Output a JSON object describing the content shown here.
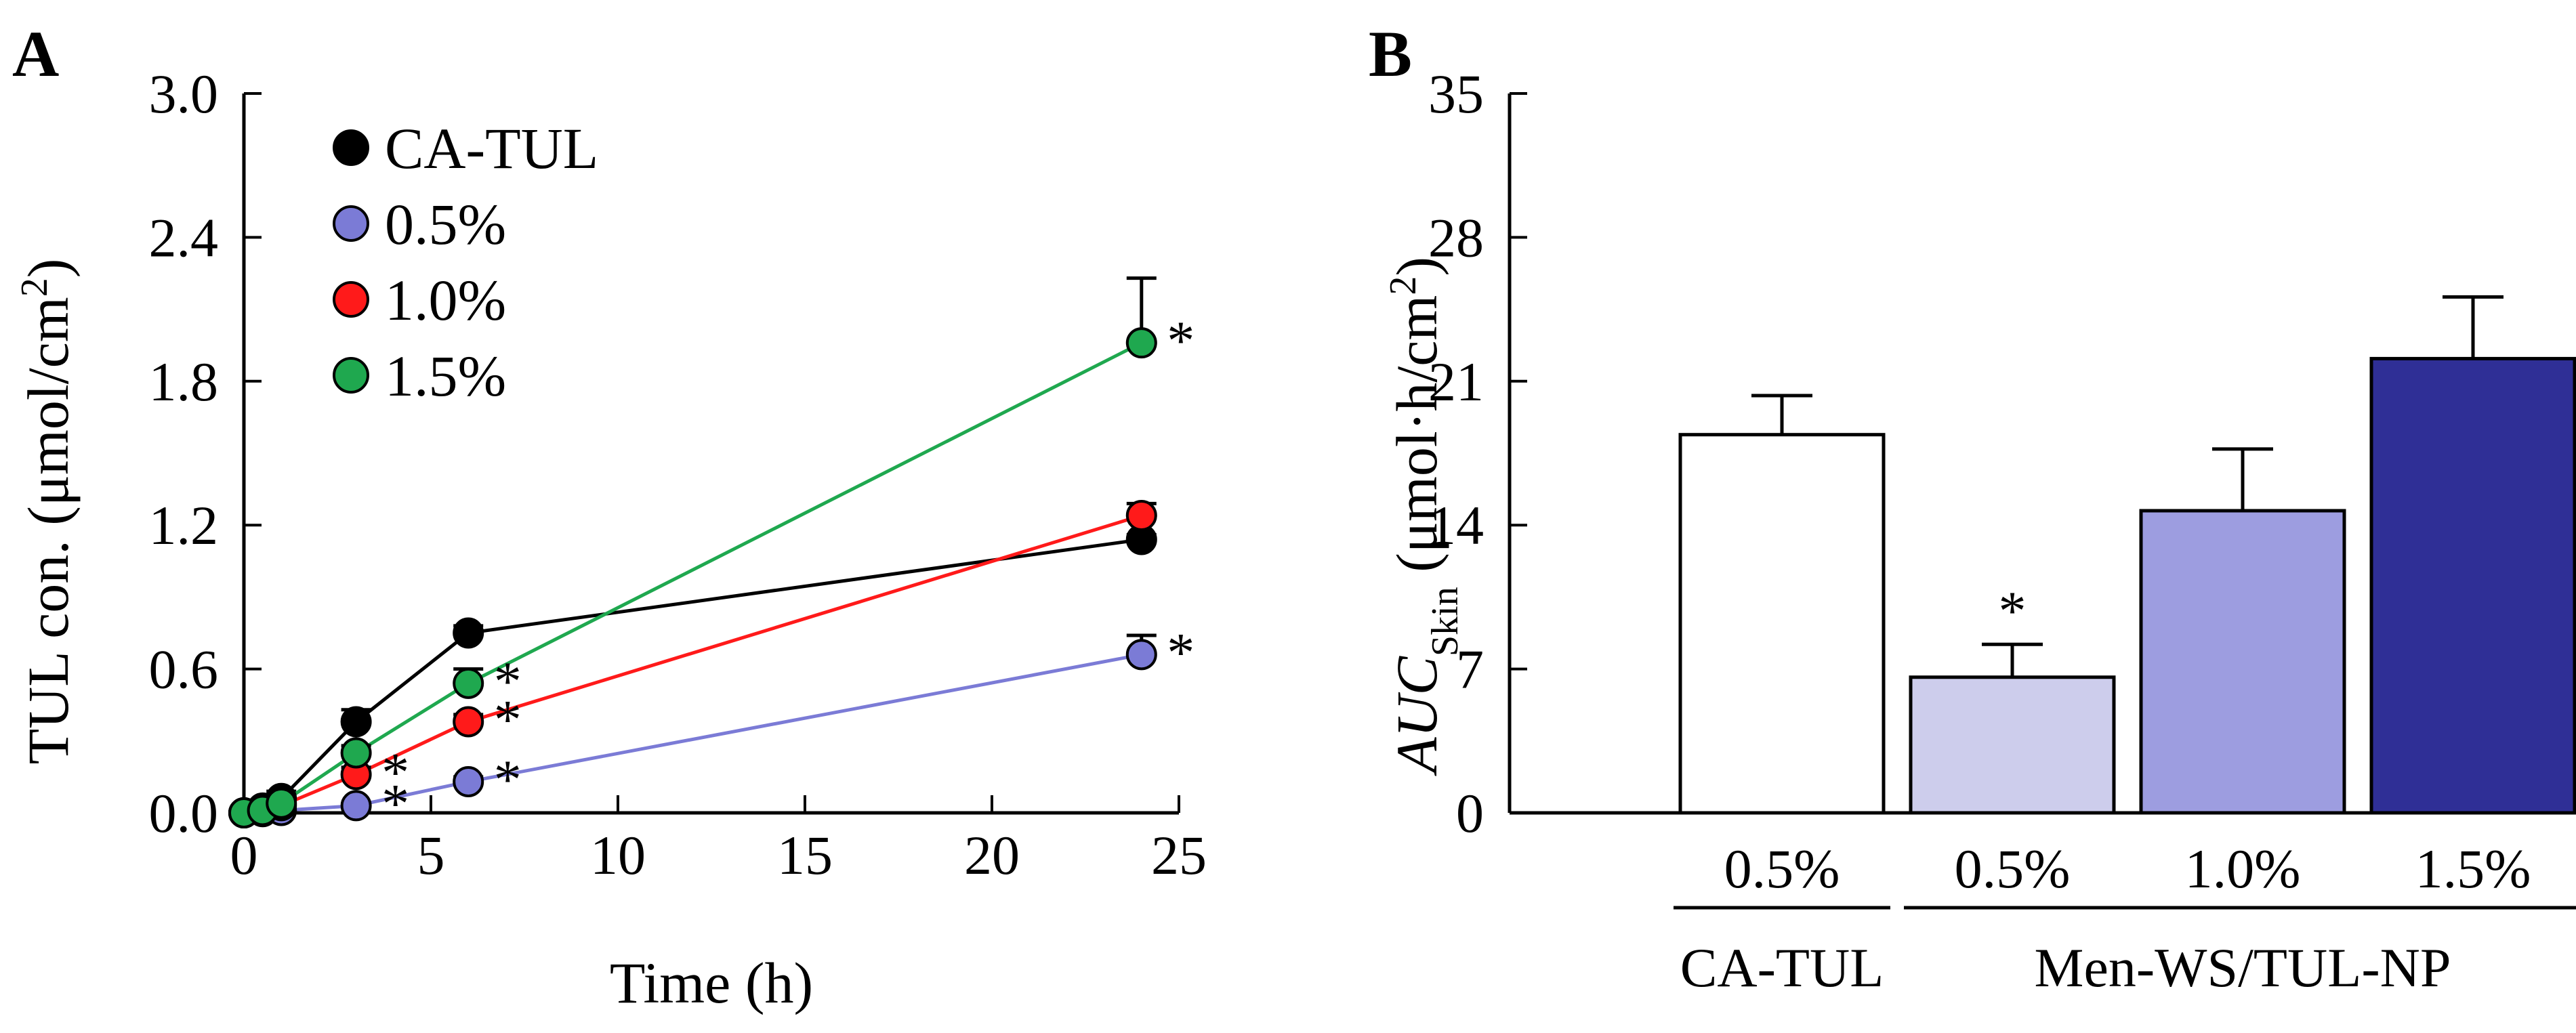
{
  "chart_data": [
    {
      "panel": "A",
      "type": "line",
      "xlabel": "Time (h)",
      "ylabel_main": "TUL con. (μmol/cm",
      "ylabel_sup": "2",
      "ylabel_close": ")",
      "xlim": [
        0,
        25
      ],
      "ylim": [
        0,
        3.0
      ],
      "xticks": [
        0,
        5,
        10,
        15,
        20,
        25
      ],
      "yticks": [
        "0.0",
        "0.6",
        "1.2",
        "1.8",
        "2.4",
        "3.0"
      ],
      "series": [
        {
          "name": "CA-TUL",
          "color": "#000000",
          "x": [
            0,
            0.5,
            1,
            3,
            6,
            24
          ],
          "y": [
            0,
            0.02,
            0.06,
            0.38,
            0.75,
            1.14
          ],
          "err": [
            0.01,
            0.015,
            0.03,
            0.05,
            0.03,
            0.02
          ],
          "stars": [
            false,
            false,
            false,
            false,
            false,
            false
          ]
        },
        {
          "name": "0.5%",
          "color": "#7b7bd6",
          "x": [
            0,
            0.5,
            1,
            3,
            6,
            24
          ],
          "y": [
            0,
            0.005,
            0.01,
            0.03,
            0.13,
            0.66
          ],
          "err": [
            0,
            0,
            0.005,
            0.01,
            0.02,
            0.08
          ],
          "stars": [
            false,
            false,
            false,
            true,
            true,
            true
          ]
        },
        {
          "name": "1.0%",
          "color": "#ff1a1a",
          "x": [
            0,
            0.5,
            1,
            3,
            6,
            24
          ],
          "y": [
            0,
            0.01,
            0.03,
            0.16,
            0.38,
            1.24
          ],
          "err": [
            0,
            0.005,
            0.01,
            0.03,
            0.03,
            0.05
          ],
          "stars": [
            false,
            false,
            false,
            true,
            true,
            false
          ]
        },
        {
          "name": "1.5%",
          "color": "#1fa84f",
          "x": [
            0,
            0.5,
            1,
            3,
            6,
            24
          ],
          "y": [
            0,
            0.01,
            0.04,
            0.25,
            0.54,
            1.96
          ],
          "err": [
            0,
            0.005,
            0.01,
            0.03,
            0.06,
            0.27
          ],
          "stars": [
            false,
            false,
            false,
            false,
            true,
            true
          ]
        }
      ]
    },
    {
      "panel": "B",
      "type": "bar",
      "ylabel_main": "AUC",
      "ylabel_sub": "Skin",
      "ylabel_unit": " (μmol·h/cm",
      "ylabel_sup": "2",
      "ylabel_close": ")",
      "ylim": [
        0,
        35
      ],
      "yticks": [
        "0",
        "7",
        "14",
        "21",
        "28",
        "35"
      ],
      "categories": [
        "0.5%",
        "0.5%",
        "1.0%",
        "1.5%"
      ],
      "values": [
        18.4,
        6.6,
        14.7,
        22.1
      ],
      "errors": [
        1.9,
        1.6,
        3.0,
        3.0
      ],
      "stars": [
        false,
        true,
        false,
        false
      ],
      "colors": [
        "#ffffff",
        "#cdcdec",
        "#9d9de0",
        "#2f2f96"
      ],
      "groups": [
        {
          "label": "CA-TUL",
          "from": 0,
          "to": 0
        },
        {
          "label": "Men-WS/TUL-NP",
          "from": 1,
          "to": 3
        }
      ]
    }
  ]
}
